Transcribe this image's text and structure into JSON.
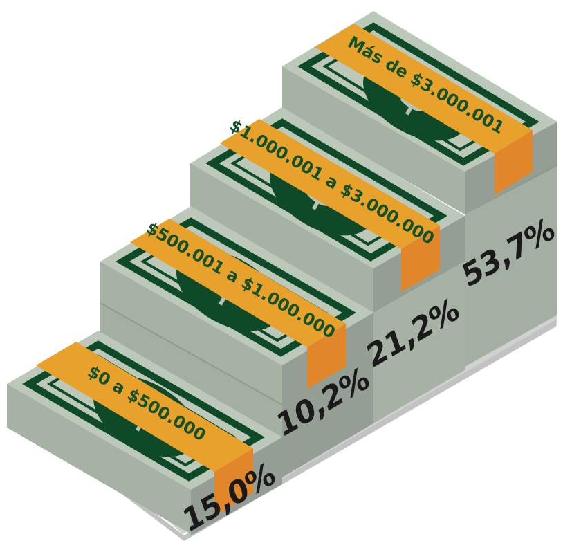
{
  "chart_data": {
    "type": "bar",
    "categories": [
      "$0 a $500.000",
      "$500.001 a $1.000.000",
      "$1.000.001 a $3.000.000",
      "Más de $3.000.001"
    ],
    "values": [
      15.0,
      10.2,
      21.2,
      53.7
    ],
    "value_labels": [
      "15,0%",
      "10,2%",
      "21,2%",
      "53,7%"
    ],
    "unit": "%"
  },
  "colors": {
    "bill_face": "#b6c3b4",
    "bill_front": "#a7b4a5",
    "bill_side": "#969f95",
    "bill_green": "#0f4a28",
    "band": "#e8a22b",
    "band_dark": "#e2862a",
    "base_shadow": "#c9c9c9"
  },
  "icons": {
    "bill_symbol": "dollar-sign-icon"
  }
}
